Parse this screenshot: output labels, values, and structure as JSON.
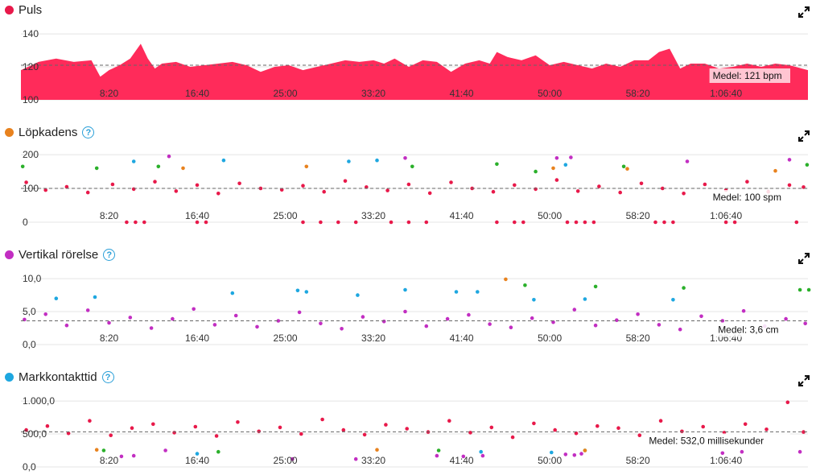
{
  "x_ticks": [
    "8:20",
    "16:40",
    "25:00",
    "33:20",
    "41:40",
    "50:00",
    "58:20",
    "1:06:40"
  ],
  "panels": [
    {
      "title": "Puls",
      "color": "#e8194a",
      "has_help": false,
      "avg_label": "Medel: 121 bpm"
    },
    {
      "title": "Löpkadens",
      "color": "#e8821e",
      "has_help": true,
      "help_glyph": "?",
      "avg_label": "Medel: 100 spm"
    },
    {
      "title": "Vertikal rörelse",
      "color": "#c22ec2",
      "has_help": true,
      "help_glyph": "?",
      "avg_label": "Medel: 3,6 cm"
    },
    {
      "title": "Markkontakttid",
      "color": "#1ea7e0",
      "has_help": true,
      "help_glyph": "?",
      "avg_label": "Medel: 532,0 millisekunder"
    }
  ],
  "chart_data": [
    {
      "type": "area",
      "title": "Puls",
      "x_unit": "seconds",
      "x_range": [
        0,
        4465
      ],
      "x_tick_labels": [
        "8:20",
        "16:40",
        "25:00",
        "33:20",
        "41:40",
        "50:00",
        "58:20",
        "1:06:40"
      ],
      "x_tick_values": [
        500,
        1000,
        1500,
        2000,
        2500,
        3000,
        3500,
        4000
      ],
      "ylim": [
        100,
        142
      ],
      "y_tick_labels": [
        "100",
        "120",
        "140"
      ],
      "y_tick_values": [
        100,
        120,
        140
      ],
      "average": 121,
      "color": "#ff2b5a",
      "x": [
        0,
        100,
        200,
        300,
        400,
        450,
        500,
        560,
        620,
        680,
        720,
        760,
        800,
        880,
        960,
        1040,
        1120,
        1200,
        1280,
        1360,
        1440,
        1520,
        1600,
        1680,
        1760,
        1840,
        1920,
        2000,
        2060,
        2120,
        2200,
        2280,
        2360,
        2440,
        2520,
        2600,
        2660,
        2700,
        2760,
        2840,
        2920,
        3000,
        3080,
        3160,
        3240,
        3320,
        3400,
        3480,
        3560,
        3620,
        3680,
        3740,
        3800,
        3880,
        3960,
        4040,
        4120,
        4200,
        4280,
        4360,
        4465
      ],
      "y": [
        118,
        123,
        125,
        123,
        124,
        114,
        118,
        121,
        125,
        134,
        125,
        119,
        122,
        123,
        120,
        121,
        122,
        123,
        121,
        117,
        120,
        121,
        118,
        120,
        122,
        124,
        123,
        124,
        122,
        125,
        120,
        124,
        123,
        117,
        122,
        124,
        122,
        129,
        126,
        124,
        127,
        121,
        123,
        121,
        119,
        122,
        120,
        124,
        124,
        129,
        131,
        119,
        122,
        122,
        119,
        120,
        122,
        120,
        122,
        121,
        118
      ]
    },
    {
      "type": "scatter",
      "title": "Löpkadens",
      "x_unit": "seconds",
      "x_range": [
        0,
        4465
      ],
      "x_tick_labels": [
        "8:20",
        "16:40",
        "25:00",
        "33:20",
        "41:40",
        "50:00",
        "58:20",
        "1:06:40"
      ],
      "ylim": [
        0,
        205
      ],
      "y_tick_labels": [
        "0",
        "100",
        "200"
      ],
      "y_tick_values": [
        0,
        100,
        200
      ],
      "average": 100,
      "series": [
        {
          "color": "#e8194a",
          "x": [
            30,
            140,
            260,
            380,
            520,
            640,
            760,
            880,
            1000,
            1120,
            1240,
            1360,
            1480,
            1600,
            1720,
            1840,
            1960,
            2080,
            2200,
            2320,
            2440,
            2560,
            2680,
            2800,
            2920,
            3040,
            3160,
            3280,
            3400,
            3520,
            3640,
            3760,
            3880,
            4000,
            4120,
            4240,
            4360,
            4440
          ],
          "y": [
            118,
            95,
            105,
            88,
            112,
            98,
            120,
            92,
            110,
            85,
            115,
            100,
            96,
            108,
            90,
            122,
            104,
            94,
            112,
            86,
            118,
            100,
            90,
            110,
            98,
            125,
            92,
            106,
            88,
            115,
            100,
            85,
            112,
            95,
            120,
            90,
            110,
            104
          ]
        },
        {
          "color": "#e8194a",
          "x": [
            600,
            650,
            700,
            1000,
            1050,
            1600,
            1700,
            1800,
            1900,
            2100,
            2200,
            2300,
            2700,
            2800,
            2850,
            3100,
            3150,
            3200,
            3250,
            3600,
            3650,
            3700,
            4000,
            4050,
            4400
          ],
          "y": [
            0,
            0,
            0,
            0,
            0,
            0,
            0,
            0,
            0,
            0,
            0,
            0,
            0,
            0,
            0,
            0,
            0,
            0,
            0,
            0,
            0,
            0,
            0,
            0,
            0
          ]
        },
        {
          "color": "#2bb02b",
          "x": [
            10,
            430,
            780,
            2220,
            2700,
            2920,
            3420,
            4460
          ],
          "y": [
            165,
            160,
            165,
            165,
            172,
            150,
            165,
            170
          ]
        },
        {
          "color": "#1ea7e0",
          "x": [
            640,
            1150,
            1860,
            2020,
            3090
          ],
          "y": [
            180,
            183,
            180,
            183,
            170
          ]
        },
        {
          "color": "#e8821e",
          "x": [
            920,
            1620,
            3020,
            3440,
            4280
          ],
          "y": [
            160,
            165,
            160,
            158,
            152
          ]
        },
        {
          "color": "#c22ec2",
          "x": [
            840,
            2180,
            3040,
            3120,
            3780,
            4360
          ],
          "y": [
            195,
            190,
            190,
            192,
            180,
            185
          ]
        }
      ]
    },
    {
      "type": "scatter",
      "title": "Vertikal rörelse",
      "x_unit": "seconds",
      "x_range": [
        0,
        4465
      ],
      "x_tick_labels": [
        "8:20",
        "16:40",
        "25:00",
        "33:20",
        "41:40",
        "50:00",
        "58:20",
        "1:06:40"
      ],
      "ylim": [
        0,
        10.5
      ],
      "y_tick_labels": [
        "0,0",
        "5,0",
        "10,0"
      ],
      "y_tick_values": [
        0,
        5,
        10
      ],
      "average": 3.6,
      "series": [
        {
          "color": "#c22ec2",
          "x": [
            20,
            140,
            260,
            380,
            500,
            620,
            740,
            860,
            980,
            1100,
            1220,
            1340,
            1460,
            1580,
            1700,
            1820,
            1940,
            2060,
            2180,
            2300,
            2420,
            2540,
            2660,
            2780,
            2900,
            3020,
            3140,
            3260,
            3380,
            3500,
            3620,
            3740,
            3860,
            3980,
            4100,
            4220,
            4340,
            4450
          ],
          "y": [
            3.8,
            4.6,
            2.9,
            5.2,
            3.3,
            4.1,
            2.5,
            3.9,
            5.4,
            3.0,
            4.4,
            2.7,
            3.6,
            4.9,
            3.2,
            2.4,
            4.2,
            3.5,
            5.0,
            2.8,
            3.9,
            4.5,
            3.1,
            2.6,
            4.0,
            3.4,
            5.3,
            2.9,
            3.7,
            4.6,
            3.0,
            2.3,
            4.3,
            3.6,
            5.1,
            2.8,
            3.9,
            3.2
          ]
        },
        {
          "color": "#1ea7e0",
          "x": [
            200,
            420,
            1200,
            1570,
            1620,
            1910,
            2180,
            2470,
            2590,
            2910,
            3200,
            3700
          ],
          "y": [
            7.0,
            7.2,
            7.8,
            8.2,
            8.0,
            7.5,
            8.3,
            8.0,
            8.0,
            6.8,
            6.9,
            6.8
          ]
        },
        {
          "color": "#2bb02b",
          "x": [
            2860,
            3260,
            3760,
            4420,
            4470
          ],
          "y": [
            9.0,
            8.8,
            8.6,
            8.3,
            8.3
          ]
        },
        {
          "color": "#e8821e",
          "x": [
            2750
          ],
          "y": [
            9.9
          ]
        }
      ]
    },
    {
      "type": "scatter",
      "title": "Markkontakttid",
      "x_unit": "seconds",
      "x_range": [
        0,
        4465
      ],
      "x_tick_labels": [
        "8:20",
        "16:40",
        "25:00",
        "33:20",
        "41:40",
        "50:00",
        "58:20",
        "1:06:40"
      ],
      "ylim": [
        0,
        1050
      ],
      "y_tick_labels": [
        "0,0",
        "500,0",
        "1.000,0"
      ],
      "y_tick_values": [
        0,
        500,
        1000
      ],
      "average": 532.0,
      "series": [
        {
          "color": "#e8194a",
          "x": [
            30,
            150,
            270,
            390,
            510,
            630,
            750,
            870,
            990,
            1110,
            1230,
            1350,
            1470,
            1590,
            1710,
            1830,
            1950,
            2070,
            2190,
            2310,
            2430,
            2550,
            2670,
            2790,
            2910,
            3030,
            3150,
            3270,
            3390,
            3510,
            3630,
            3750,
            3870,
            3990,
            4110,
            4230,
            4350,
            4440
          ],
          "y": [
            560,
            620,
            510,
            700,
            480,
            590,
            650,
            520,
            610,
            470,
            680,
            540,
            600,
            500,
            720,
            560,
            490,
            640,
            580,
            530,
            700,
            520,
            600,
            450,
            660,
            560,
            510,
            620,
            590,
            480,
            700,
            540,
            610,
            520,
            650,
            570,
            980,
            530
          ]
        },
        {
          "color": "#c22ec2",
          "x": [
            570,
            640,
            820,
            1540,
            1900,
            2360,
            2510,
            2620,
            3090,
            3140,
            3180,
            3980,
            4090,
            4420
          ],
          "y": [
            160,
            170,
            250,
            120,
            120,
            170,
            160,
            170,
            190,
            180,
            200,
            210,
            230,
            230
          ]
        },
        {
          "color": "#2bb02b",
          "x": [
            470,
            1120,
            2370,
            3200
          ],
          "y": [
            250,
            230,
            250,
            250
          ]
        },
        {
          "color": "#e8821e",
          "x": [
            430,
            2020,
            3200
          ],
          "y": [
            260,
            260,
            250
          ]
        },
        {
          "color": "#1ea7e0",
          "x": [
            1000,
            2610,
            3010
          ],
          "y": [
            200,
            230,
            220
          ]
        }
      ]
    }
  ]
}
